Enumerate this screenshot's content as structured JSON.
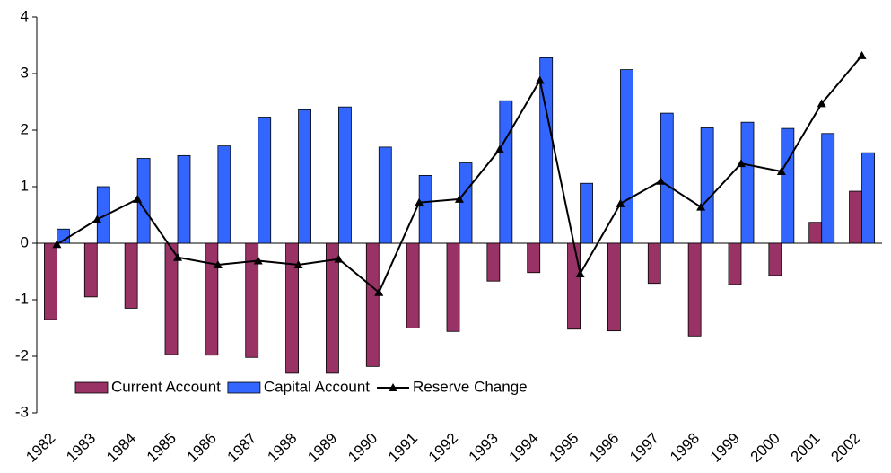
{
  "chart_data": {
    "type": "bar",
    "categories": [
      "1982",
      "1983",
      "1984",
      "1985",
      "1986",
      "1987",
      "1988",
      "1989",
      "1990",
      "1991",
      "1992",
      "1993",
      "1994",
      "1995",
      "1996",
      "1997",
      "1998",
      "1999",
      "2000",
      "2001",
      "2002"
    ],
    "series": [
      {
        "name": "Current Account",
        "color": "#993366",
        "values": [
          -1.35,
          -0.95,
          -1.15,
          -1.97,
          -1.98,
          -2.02,
          -2.3,
          -2.3,
          -2.18,
          -1.5,
          -1.56,
          -0.67,
          -0.52,
          -1.52,
          -1.55,
          -0.71,
          -1.64,
          -0.73,
          -0.57,
          0.37,
          0.92
        ]
      },
      {
        "name": "Capital Account",
        "color": "#3366ff",
        "values": [
          0.25,
          1.0,
          1.5,
          1.55,
          1.72,
          2.23,
          2.36,
          2.41,
          1.7,
          1.2,
          1.42,
          2.52,
          3.28,
          1.06,
          3.07,
          2.3,
          2.04,
          2.14,
          2.03,
          1.94,
          1.6
        ]
      },
      {
        "name": "Reserve Change",
        "color": "#000000",
        "type": "line",
        "values": [
          -0.02,
          0.42,
          0.78,
          -0.25,
          -0.38,
          -0.31,
          -0.38,
          -0.28,
          -0.87,
          0.72,
          0.78,
          1.66,
          2.88,
          -0.54,
          0.7,
          1.1,
          0.64,
          1.41,
          1.27,
          2.47,
          3.32
        ]
      }
    ],
    "ylim": [
      -3,
      4
    ],
    "yticks": [
      -3,
      -2,
      -1,
      0,
      1,
      2,
      3,
      4
    ]
  }
}
